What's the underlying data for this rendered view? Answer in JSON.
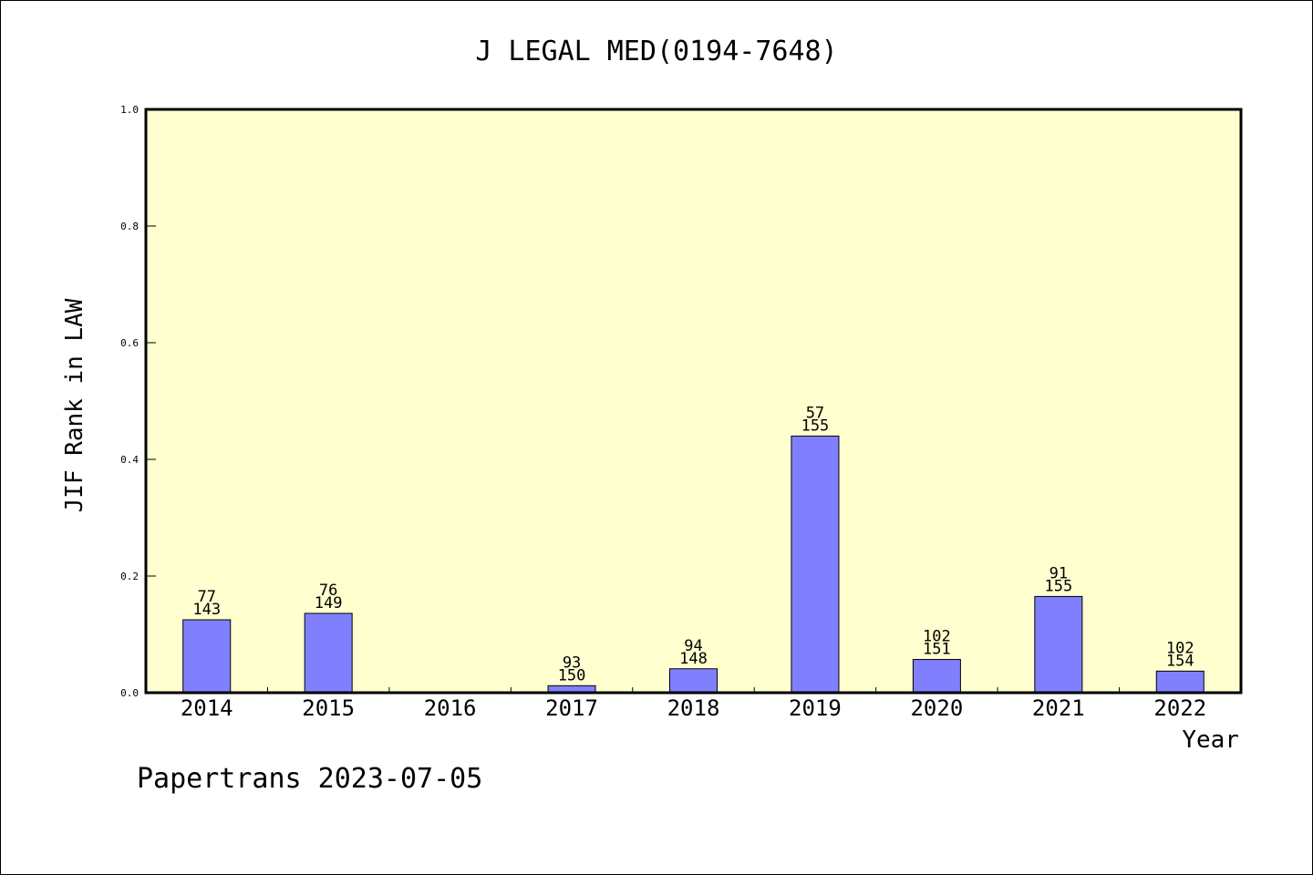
{
  "chart_data": {
    "type": "bar",
    "title": "J LEGAL MED(0194-7648)",
    "xlabel": "Year",
    "ylabel": "JIF Rank in LAW",
    "ylim": [
      0,
      1.0
    ],
    "yticks": [
      "0.0",
      "0.2",
      "0.4",
      "0.6",
      "0.8",
      "1.0"
    ],
    "categories": [
      "2014",
      "2015",
      "2016",
      "2017",
      "2018",
      "2019",
      "2020",
      "2021",
      "2022"
    ],
    "values": [
      0.125,
      0.136,
      null,
      0.012,
      0.041,
      0.44,
      0.057,
      0.165,
      0.037
    ],
    "ranks": [
      "77",
      "76",
      "",
      "93",
      "94",
      "57",
      "102",
      "91",
      "102"
    ],
    "totals": [
      "143",
      "149",
      "",
      "150",
      "148",
      "155",
      "151",
      "155",
      "154"
    ],
    "colors": {
      "plot_background": "#ffffd0",
      "bar_fill": "#8080ff",
      "bar_stroke": "#000000"
    },
    "grid": false,
    "legend": "none"
  },
  "footer": {
    "text": "Papertrans 2023-07-05"
  }
}
